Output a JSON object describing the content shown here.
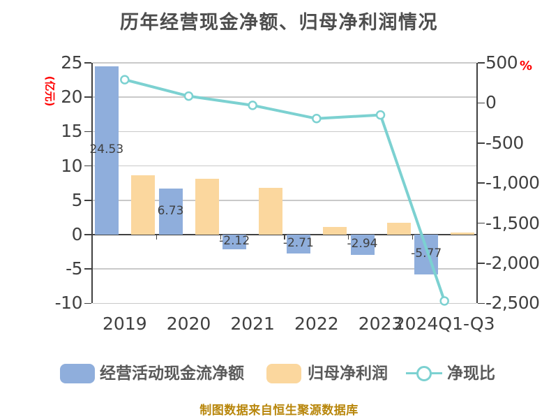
{
  "title": "历年经营现金净额、归母净利润情况",
  "footer_note": "制图数据来自恒生聚源数据库",
  "left_axis": {
    "unit_label": "(亿元)",
    "tick_labels": [
      "25",
      "20",
      "15",
      "10",
      "5",
      "0",
      "-5",
      "-10"
    ],
    "tick_values": [
      25,
      20,
      15,
      10,
      5,
      0,
      -5,
      -10
    ]
  },
  "right_axis": {
    "unit_label": "%",
    "tick_labels": [
      "500",
      "0",
      "-500",
      "-1,000",
      "-1,500",
      "-2,000",
      "-2,500"
    ],
    "tick_values": [
      500,
      0,
      -500,
      -1000,
      -1500,
      -2000,
      -2500
    ]
  },
  "legend": [
    {
      "label": "经营活动现金流净额",
      "type": "bar-swatch",
      "color": "#8FAEDC"
    },
    {
      "label": "归母净利润",
      "type": "bar-swatch",
      "color": "#FBD79E"
    },
    {
      "label": "净现比",
      "type": "line-marker",
      "color": "#7CD1D1"
    }
  ],
  "chart_data": {
    "type": "bar+line-combo",
    "categories": [
      "2019",
      "2020",
      "2021",
      "2022",
      "2023",
      "2024Q1-Q3"
    ],
    "series": [
      {
        "name": "经营活动现金流净额",
        "type": "bar",
        "axis": "left",
        "color": "#8FAEDC",
        "values": [
          24.53,
          6.73,
          -2.12,
          -2.71,
          -2.94,
          -5.77
        ],
        "data_labels": [
          "24.53",
          "6.73",
          "-2.12",
          "-2.71",
          "-2.94",
          "-5.77"
        ]
      },
      {
        "name": "归母净利润",
        "type": "bar",
        "axis": "left",
        "color": "#FBD79E",
        "values": [
          8.6,
          8.1,
          6.8,
          1.1,
          1.7,
          0.3
        ]
      },
      {
        "name": "净现比",
        "type": "line",
        "axis": "right",
        "color": "#7CD1D1",
        "marker": "circle-white-fill",
        "values": [
          290,
          85,
          -30,
          -195,
          -150,
          -2470
        ]
      }
    ],
    "left_ylim": [
      -10,
      25
    ],
    "right_ylim": [
      -2500,
      500
    ],
    "left_axis_label": "(亿元)",
    "right_axis_label": "%",
    "grid": true,
    "legend_position": "bottom"
  },
  "colors": {
    "bar_cashflow": "#8FAEDC",
    "bar_profit": "#FBD79E",
    "line_ratio": "#7CD1D1",
    "grid": "#C9C9C9",
    "axis": "#404040",
    "title_text": "#4D4D4D",
    "unit_text": "#FF0000",
    "footer_text": "#B8860B",
    "background": "#FFFFFF"
  }
}
